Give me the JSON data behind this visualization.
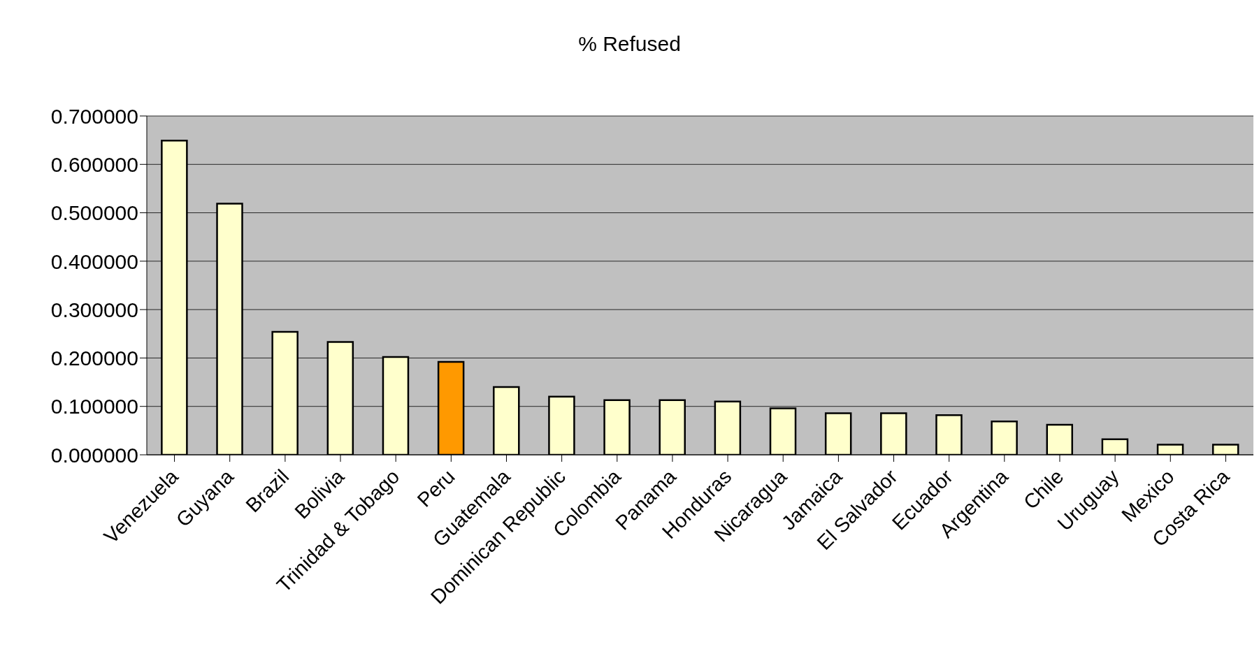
{
  "chart_data": {
    "type": "bar",
    "title": "% Refused",
    "categories": [
      "Venezuela",
      "Guyana",
      "Brazil",
      "Bolivia",
      "Trinidad & Tobago",
      "Peru",
      "Guatemala",
      "Dominican Republic",
      "Colombia",
      "Panama",
      "Honduras",
      "Nicaragua",
      "Jamaica",
      "El Salvador",
      "Ecuador",
      "Argentina",
      "Chile",
      "Uruguay",
      "Mexico",
      "Costa Rica"
    ],
    "values": [
      0.649,
      0.519,
      0.254,
      0.233,
      0.202,
      0.192,
      0.14,
      0.12,
      0.113,
      0.113,
      0.11,
      0.096,
      0.086,
      0.086,
      0.082,
      0.069,
      0.062,
      0.032,
      0.021,
      0.021
    ],
    "colors": [
      "#ffffcc",
      "#ffffcc",
      "#ffffcc",
      "#ffffcc",
      "#ffffcc",
      "#ff9900",
      "#ffffcc",
      "#ffffcc",
      "#ffffcc",
      "#ffffcc",
      "#ffffcc",
      "#ffffcc",
      "#ffffcc",
      "#ffffcc",
      "#ffffcc",
      "#ffffcc",
      "#ffffcc",
      "#ffffcc",
      "#ffffcc",
      "#ffffcc"
    ],
    "ylim": [
      0,
      0.7
    ],
    "yticks": [
      {
        "value": 0,
        "label": "0.000000"
      },
      {
        "value": 0.1,
        "label": "0.100000"
      },
      {
        "value": 0.2,
        "label": "0.200000"
      },
      {
        "value": 0.3,
        "label": "0.300000"
      },
      {
        "value": 0.4,
        "label": "0.400000"
      },
      {
        "value": 0.5,
        "label": "0.500000"
      },
      {
        "value": 0.6,
        "label": "0.600000"
      },
      {
        "value": 0.7,
        "label": "0.700000"
      }
    ],
    "grid": "y"
  }
}
